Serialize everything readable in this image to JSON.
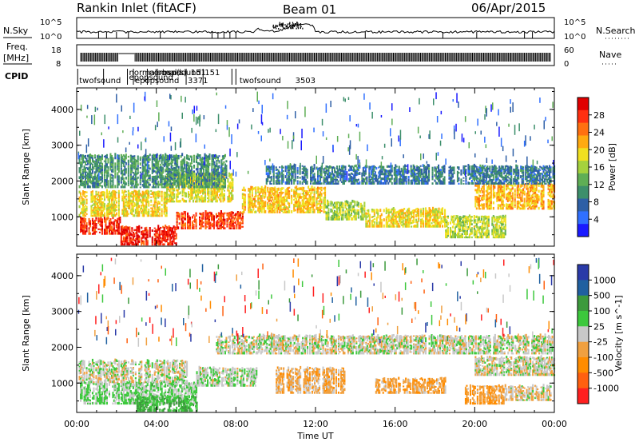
{
  "header": {
    "station": "Rankin Inlet (fitACF)",
    "beam": "Beam 01",
    "date": "06/Apr/2015"
  },
  "side_labels": {
    "nsky": "N.Sky",
    "nsearch": "N.Search",
    "freq": "Freq.",
    "freq_unit": "[MHz]",
    "nave": "Nave",
    "cpid": "CPID"
  },
  "noise_axis": {
    "ticks_left": [
      "10^5",
      "10^0"
    ],
    "ticks_right": [
      "10^5",
      "10^0"
    ]
  },
  "freq_axis": {
    "ticks_left": [
      "18",
      "8"
    ],
    "ticks_right": [
      "60",
      "0"
    ]
  },
  "cpid_labels": [
    {
      "text": "normalsound",
      "t": 2.55,
      "row": 0
    },
    {
      "text": "normalsound",
      "t": 3.55,
      "row": 0
    },
    {
      "text": "rbsp(s)",
      "t": 4.05,
      "row": 0
    },
    {
      "text": "151",
      "t": 5.65,
      "row": 0
    },
    {
      "text": "151",
      "t": 6.35,
      "row": 0
    },
    {
      "text": "epopsound",
      "t": 2.55,
      "row": 1
    },
    {
      "text": "twofsound",
      "t": 0.05,
      "row": 2
    },
    {
      "text": "epopsound",
      "t": 2.85,
      "row": 2
    },
    {
      "text": "3371",
      "t": 5.5,
      "row": 2
    },
    {
      "text": "twofsound",
      "t": 8.1,
      "row": 2
    },
    {
      "text": "3503",
      "t": 10.9,
      "row": 2
    }
  ],
  "power_colorbar": {
    "label": "Power [dB]",
    "ticks": [
      "28",
      "24",
      "20",
      "16",
      "12",
      "8",
      "4"
    ]
  },
  "velocity_colorbar": {
    "label": "Velocity [m s^-1]",
    "ticks": [
      "1000",
      "500",
      "100",
      "25",
      "-25",
      "-100",
      "-500",
      "-1000"
    ]
  },
  "chart_data": {
    "type": "heatmap",
    "xlabel": "Time UT",
    "ylabel": "Slant Range [km]",
    "x_ticks": [
      "00:00",
      "04:00",
      "08:00",
      "12:00",
      "16:00",
      "20:00",
      "00:00"
    ],
    "y_ticks": [
      "1000",
      "2000",
      "3000",
      "4000"
    ],
    "xlim": [
      0,
      24
    ],
    "ylim": [
      180,
      4600
    ],
    "panels": [
      {
        "name": "power",
        "units": "dB",
        "scale": [
          0,
          30
        ],
        "colors": [
          "#1a1aff",
          "#3070ff",
          "#2e5fa6",
          "#3d8f6b",
          "#5fae55",
          "#a5d23d",
          "#f0e020",
          "#ffaa10",
          "#ff7010",
          "#ff3010",
          "#e00000"
        ],
        "bands": [
          {
            "t0": 0.1,
            "t1": 2.2,
            "r0": 500,
            "r1": 950,
            "v": 26
          },
          {
            "t0": 2.2,
            "t1": 5.0,
            "r0": 200,
            "r1": 700,
            "v": 27
          },
          {
            "t0": 5.0,
            "t1": 8.3,
            "r0": 650,
            "r1": 1100,
            "v": 25
          },
          {
            "t0": 0.1,
            "t1": 4.5,
            "r0": 1000,
            "r1": 1700,
            "v": 18
          },
          {
            "t0": 4.5,
            "t1": 7.8,
            "r0": 1400,
            "r1": 2200,
            "v": 17
          },
          {
            "t0": 8.3,
            "t1": 12.5,
            "r0": 1100,
            "r1": 1800,
            "v": 19
          },
          {
            "t0": 12.5,
            "t1": 14.5,
            "r0": 900,
            "r1": 1400,
            "v": 15
          },
          {
            "t0": 14.5,
            "t1": 18.5,
            "r0": 700,
            "r1": 1200,
            "v": 18
          },
          {
            "t0": 18.5,
            "t1": 21.5,
            "r0": 400,
            "r1": 1000,
            "v": 16
          },
          {
            "t0": 20.0,
            "t1": 24.0,
            "r0": 1200,
            "r1": 1900,
            "v": 20
          },
          {
            "t0": 9.5,
            "t1": 24.0,
            "r0": 1900,
            "r1": 2400,
            "v": 8
          },
          {
            "t0": 0.1,
            "t1": 7.5,
            "r0": 1800,
            "r1": 2700,
            "v": 10
          }
        ]
      },
      {
        "name": "velocity",
        "units": "m s^-1",
        "scale": [
          -1000,
          1000
        ],
        "colors": [
          "#ff2020",
          "#ff6010",
          "#ff8c00",
          "#f0a040",
          "#c8c8c8",
          "#3cc83c",
          "#3c9a3c",
          "#2060a0",
          "#2a3aa8"
        ],
        "bands": [
          {
            "t0": 0.1,
            "t1": 6.0,
            "r0": 400,
            "r1": 1000,
            "v": 120
          },
          {
            "t0": 0.1,
            "t1": 5.5,
            "r0": 1000,
            "r1": 1600,
            "v": 0
          },
          {
            "t0": 3.0,
            "t1": 6.0,
            "r0": 200,
            "r1": 600,
            "v": 300
          },
          {
            "t0": 6.0,
            "t1": 9.0,
            "r0": 900,
            "r1": 1400,
            "v": 60
          },
          {
            "t0": 10.0,
            "t1": 13.5,
            "r0": 700,
            "r1": 1400,
            "v": -200
          },
          {
            "t0": 15.0,
            "t1": 18.5,
            "r0": 700,
            "r1": 1100,
            "v": -250
          },
          {
            "t0": 19.5,
            "t1": 21.5,
            "r0": 400,
            "r1": 900,
            "v": -300
          },
          {
            "t0": 21.5,
            "t1": 23.8,
            "r0": 500,
            "r1": 900,
            "v": -60
          },
          {
            "t0": 7.0,
            "t1": 24.0,
            "r0": 1800,
            "r1": 2300,
            "v": 0
          },
          {
            "t0": 20.0,
            "t1": 24.0,
            "r0": 1200,
            "r1": 1700,
            "v": 0
          }
        ]
      }
    ],
    "grid": false,
    "legend": "right colorbars"
  }
}
